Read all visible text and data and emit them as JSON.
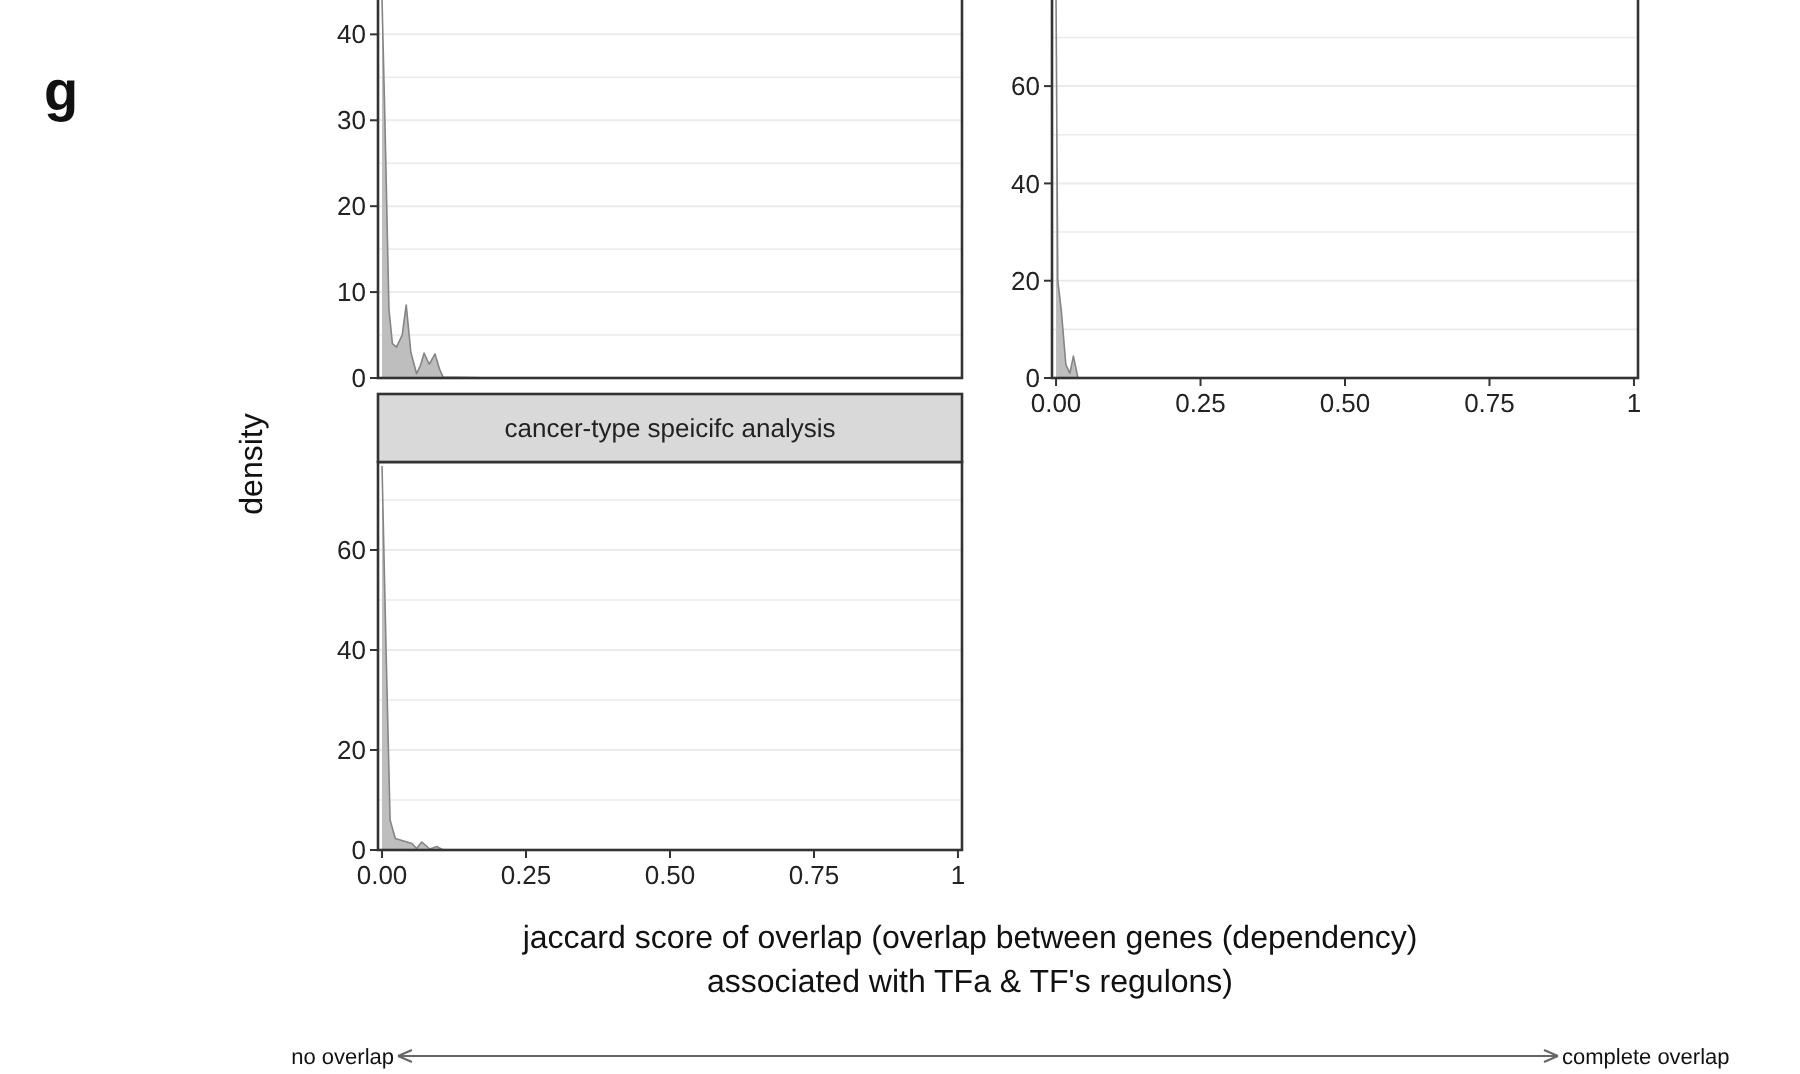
{
  "chart_data": [
    {
      "type": "area",
      "x": [
        0,
        0.005,
        0.012,
        0.018,
        0.025,
        0.035,
        0.042,
        0.05,
        0.06,
        0.067,
        0.073,
        0.082,
        0.092,
        0.1,
        0.106,
        0.2,
        1
      ],
      "series": [
        {
          "color": "#bebebe",
          "values": [
            44,
            30,
            8,
            4,
            3.6,
            5,
            8.5,
            3,
            0.5,
            1.5,
            2.9,
            1.6,
            2.8,
            1,
            0.1,
            0,
            0
          ]
        }
      ],
      "xlim": [
        -0.007,
        1.007
      ],
      "ylim": [
        0,
        44
      ],
      "yticks": [
        0,
        10,
        20,
        30,
        40
      ],
      "tick_labels": "y",
      "grid": "y",
      "annotations": [
        "g"
      ]
    },
    {
      "type": "area",
      "x": [
        0,
        0.003,
        0.009,
        0.017,
        0.024,
        0.03,
        0.038,
        0.1,
        1
      ],
      "series": [
        {
          "color": "#bebebe",
          "values": [
            77.7,
            20,
            14,
            2.7,
            1,
            4.5,
            0,
            0,
            0
          ]
        }
      ],
      "xlim": [
        -0.007,
        1.007
      ],
      "ylim": [
        0,
        77.7
      ],
      "yticks": [
        0,
        20,
        40,
        60
      ],
      "xticks": [
        {
          "value": 0,
          "label": "0.00"
        },
        {
          "value": 0.25,
          "label": "0.25"
        },
        {
          "value": 0.5,
          "label": "0.50"
        },
        {
          "value": 0.75,
          "label": "0.75"
        },
        1
      ],
      "grid": "y"
    },
    {
      "type": "area",
      "title": "cancer-type speicifc analysis",
      "x": [
        0,
        0.007,
        0.014,
        0.023,
        0.052,
        0.06,
        0.069,
        0.083,
        0.095,
        0.106,
        1
      ],
      "series": [
        {
          "color": "#bebebe",
          "values": [
            76.8,
            40,
            6,
            2.3,
            1.3,
            0.3,
            1.6,
            0.2,
            0.7,
            0,
            0
          ]
        }
      ],
      "xlim": [
        -0.007,
        1.007
      ],
      "ylim": [
        0,
        76.8
      ],
      "yticks": [
        0,
        20,
        40,
        60
      ],
      "xticks": [
        {
          "value": 0,
          "label": "0.00"
        },
        {
          "value": 0.25,
          "label": "0.25"
        },
        {
          "value": 0.5,
          "label": "0.50"
        },
        {
          "value": 0.75,
          "label": "0.75"
        },
        1
      ],
      "grid": "y",
      "ylabel": "density",
      "xlabel": "jaccard score of overlap (overlap between genes (dependency)\nassociated with TFa & TF's regulons)",
      "annotations": [
        "no overlap",
        "complete overlap"
      ]
    }
  ]
}
